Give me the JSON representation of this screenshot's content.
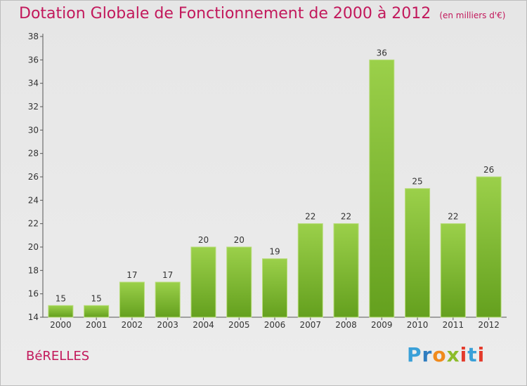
{
  "header": {
    "title": "Dotation Globale de Fonctionnement de 2000 à 2012",
    "unit": "(en milliers d'€)"
  },
  "commune": "BéRELLES",
  "logo": {
    "text": "Proxiti"
  },
  "colors": {
    "bar": "#7cb82f",
    "bar_light": "#9bd04a",
    "title": "#c2185b"
  },
  "chart_data": {
    "type": "bar",
    "title": "Dotation Globale de Fonctionnement de 2000 à 2012",
    "subtitle": "(en milliers d'€)",
    "xlabel": "",
    "ylabel": "",
    "categories": [
      "2000",
      "2001",
      "2002",
      "2003",
      "2004",
      "2005",
      "2006",
      "2007",
      "2008",
      "2009",
      "2010",
      "2011",
      "2012"
    ],
    "values": [
      15,
      15,
      17,
      17,
      20,
      20,
      19,
      22,
      22,
      36,
      25,
      22,
      26
    ],
    "data_labels": [
      "15",
      "15",
      "17",
      "17",
      "20",
      "20",
      "19",
      "22",
      "22",
      "36",
      "25",
      "22",
      "26"
    ],
    "ylim": [
      14,
      38
    ],
    "yticks": [
      14,
      16,
      18,
      20,
      22,
      24,
      26,
      28,
      30,
      32,
      34,
      36,
      38
    ],
    "grid": false
  }
}
